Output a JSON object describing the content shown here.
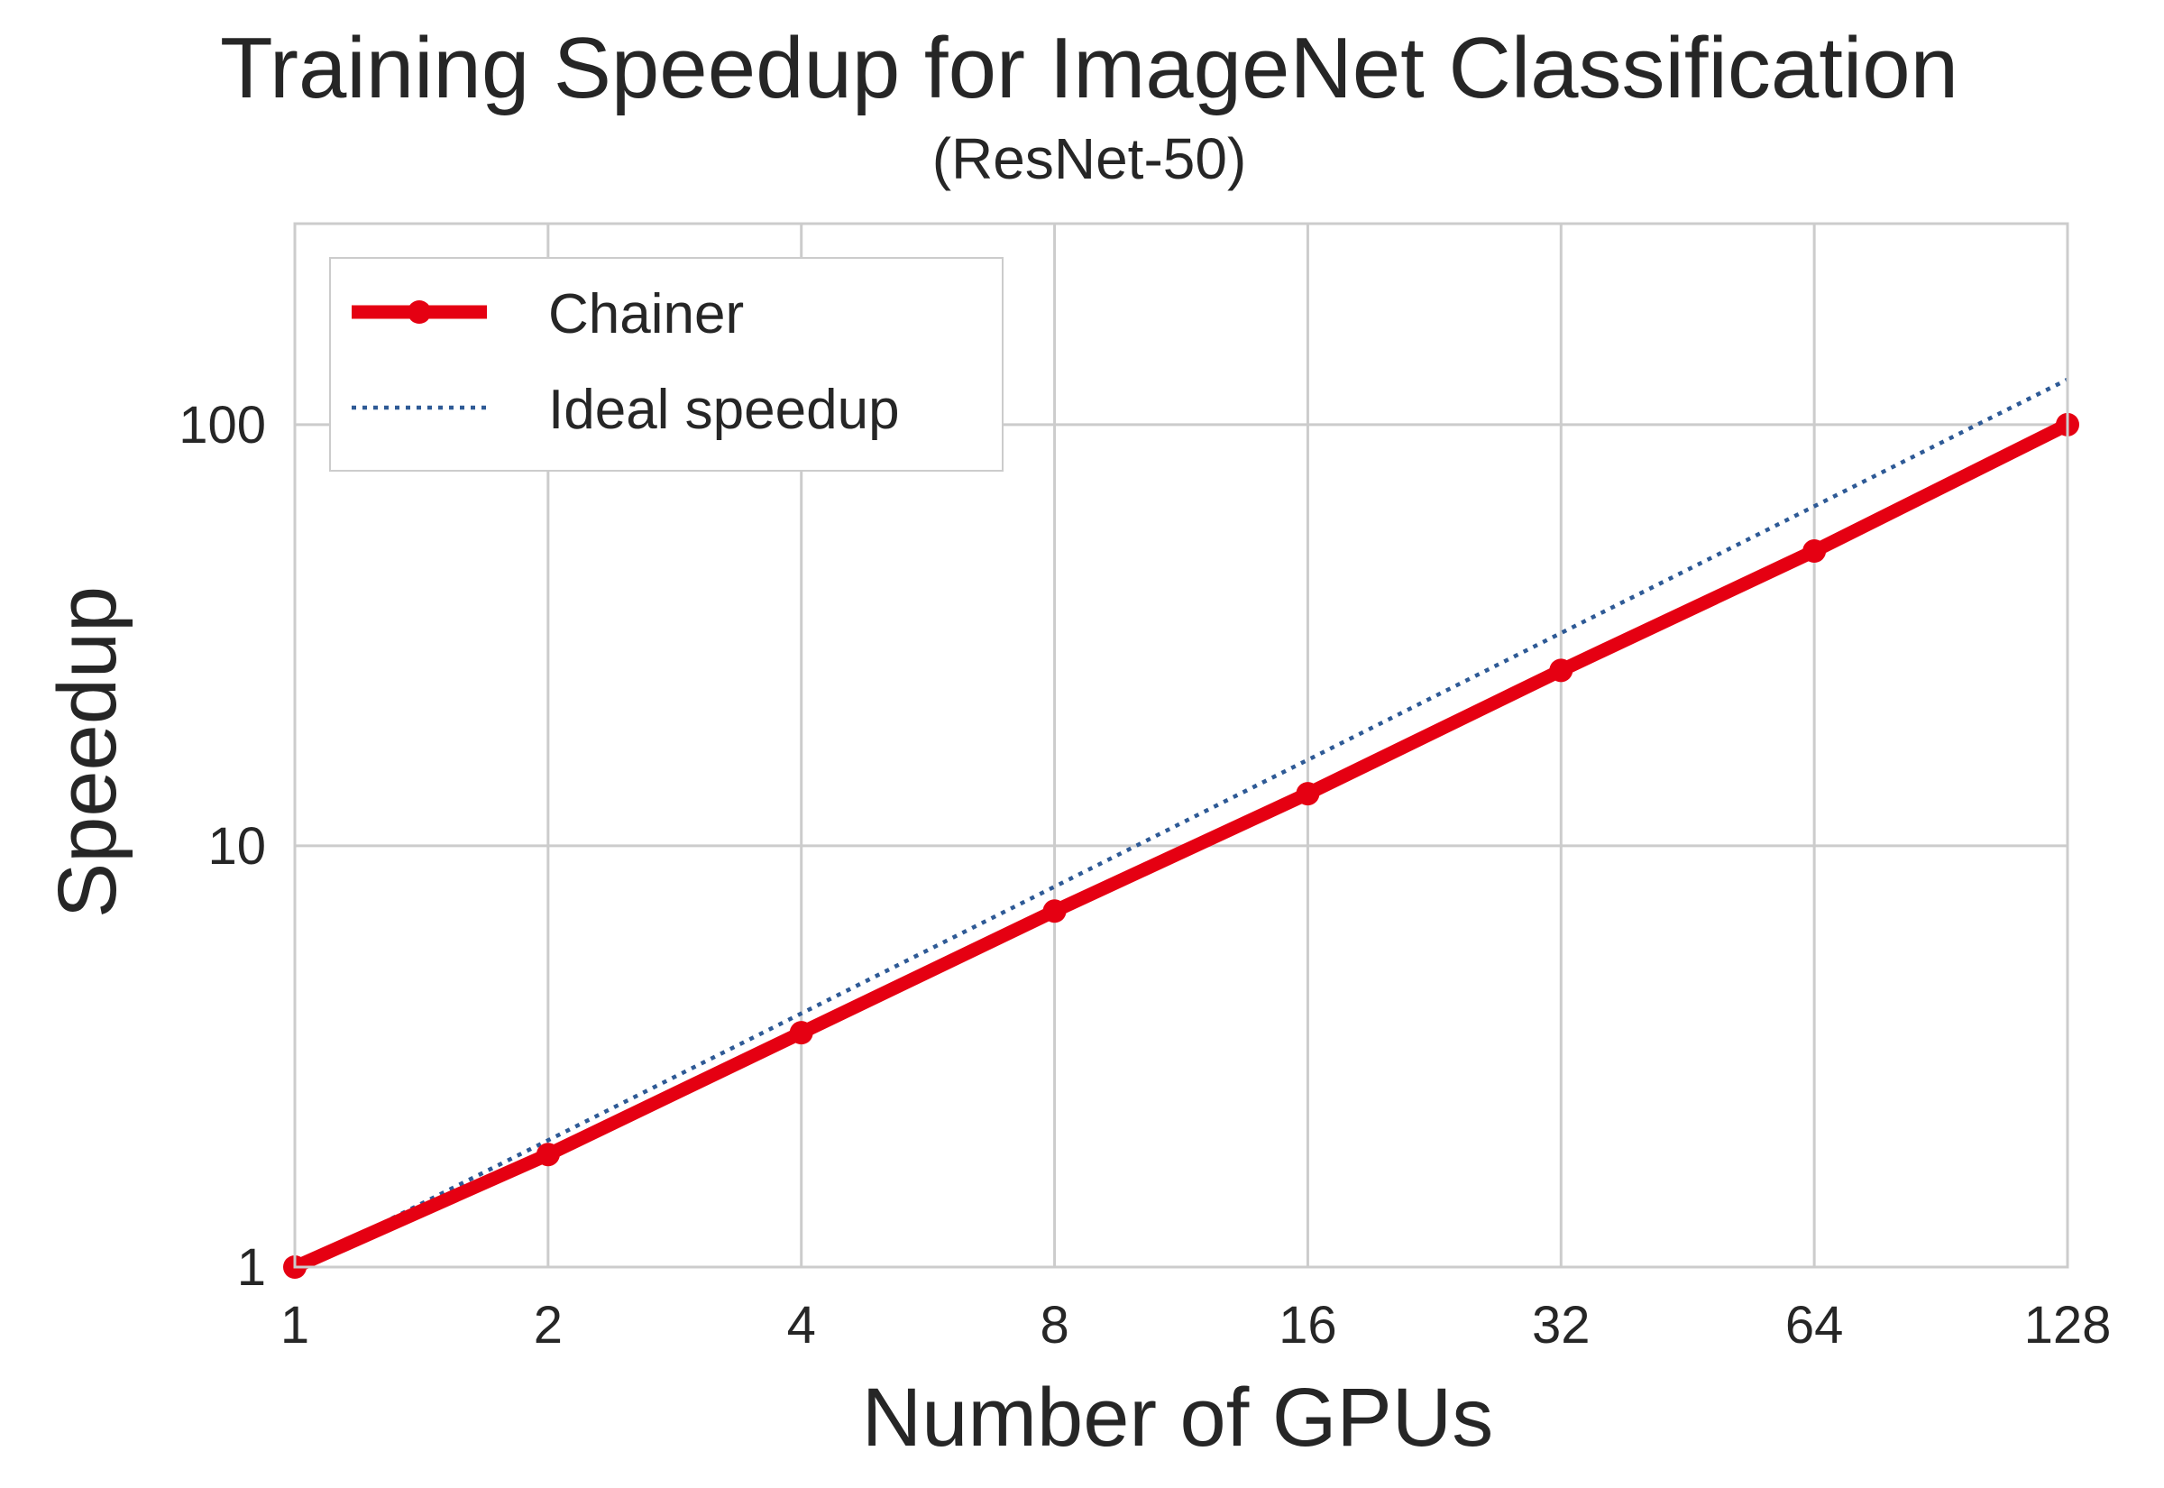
{
  "chart_data": {
    "type": "line",
    "title": "Training Speedup for ImageNet Classification",
    "subtitle": "(ResNet-50)",
    "xlabel": "Number of GPUs",
    "ylabel": "Speedup",
    "x_scale": "log2",
    "y_scale": "log10",
    "xlim": [
      1,
      128
    ],
    "ylim": [
      1,
      300
    ],
    "x_ticks": [
      1,
      2,
      4,
      8,
      16,
      32,
      64,
      128
    ],
    "x_tick_labels": [
      "1",
      "2",
      "4",
      "8",
      "16",
      "32",
      "64",
      "128"
    ],
    "y_ticks": [
      1,
      10,
      100
    ],
    "y_tick_labels": [
      "1",
      "10",
      "100"
    ],
    "grid": true,
    "legend_position": "top-left",
    "series": [
      {
        "name": "Chainer",
        "color": "#e50012",
        "style": "solid-markers",
        "x": [
          1,
          2,
          4,
          8,
          16,
          32,
          64,
          128
        ],
        "y": [
          1.0,
          1.85,
          3.6,
          7.0,
          13.3,
          26.1,
          50.1,
          100.0
        ]
      },
      {
        "name": "Ideal speedup",
        "color": "#2e5a96",
        "style": "dotted",
        "x": [
          1,
          2,
          4,
          8,
          16,
          32,
          64,
          128
        ],
        "y": [
          1,
          2,
          4,
          8,
          16,
          32,
          64,
          128
        ]
      }
    ]
  }
}
